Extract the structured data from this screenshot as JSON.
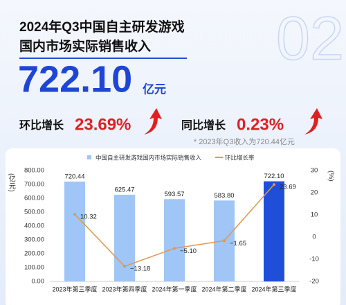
{
  "header": {
    "title_line1": "2024年Q3中国自主研发游戏",
    "title_line2": "国内市场实际销售收入",
    "watermark": "02"
  },
  "highlights": {
    "total_value": "722.10",
    "total_unit": "亿元",
    "qoq_label": "环比增长",
    "qoq_value": "23.69%",
    "yoy_label": "同比增长",
    "yoy_value": "0.23%",
    "note": "* 2023年Q3收入为720.44亿元"
  },
  "chart_data": {
    "type": "bar",
    "categories": [
      "2023年第三季度",
      "2023年第四季度",
      "2024年第一季度",
      "2024年第二季度",
      "2024年第三季度"
    ],
    "series": [
      {
        "name": "中国自主研发游戏国内市场实际销售收入",
        "type": "bar",
        "color": "#9fc6f6",
        "colors": [
          "#9fc6f6",
          "#9fc6f6",
          "#9fc6f6",
          "#9fc6f6",
          "#1f4fd8"
        ],
        "values": [
          720.44,
          625.47,
          593.57,
          583.8,
          722.1
        ],
        "value_labels": [
          "720.44",
          "625.47",
          "593.57",
          "583.80",
          "722.10"
        ]
      },
      {
        "name": "环比增长率",
        "type": "line",
        "axis": "y2",
        "color": "#e8944c",
        "values": [
          10.32,
          -13.18,
          -5.1,
          -1.65,
          23.69
        ],
        "value_labels": [
          "10.32",
          "−13.18",
          "−5.10",
          "−1.65",
          "23.69"
        ]
      }
    ],
    "ylabel": "(亿元)",
    "y2label": "(%)",
    "ylim": [
      0,
      800
    ],
    "yticks": [
      {
        "value": 0,
        "label": "0.00"
      },
      {
        "value": 100,
        "label": "100.00"
      },
      {
        "value": 200,
        "label": "200.00"
      },
      {
        "value": 300,
        "label": "300.00"
      },
      {
        "value": 400,
        "label": "400.00"
      },
      {
        "value": 500,
        "label": "500.00"
      },
      {
        "value": 600,
        "label": "600.00"
      },
      {
        "value": 700,
        "label": "700.00"
      },
      {
        "value": 800,
        "label": "800.00"
      }
    ],
    "y2lim": [
      -20,
      30
    ],
    "y2ticks": [
      -20,
      -10,
      0,
      10,
      20,
      30
    ],
    "grid": false,
    "legend": "top"
  }
}
